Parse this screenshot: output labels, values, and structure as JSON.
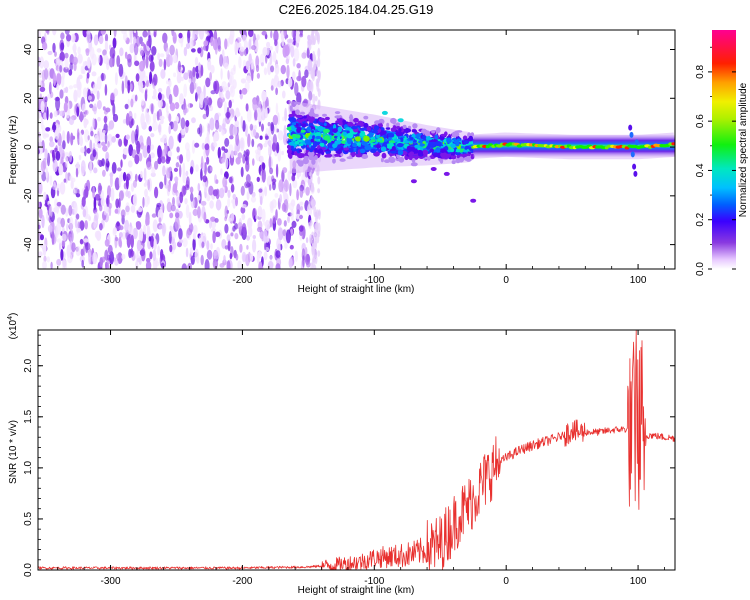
{
  "title": "C2E6.2025.184.04.25.G19",
  "colors": {
    "snr_line": "#e8302e",
    "low_noise": "#8a3ae0",
    "spectrum_ramp": [
      "#ffffff",
      "#f0d9ff",
      "#b77cf2",
      "#7a17e8",
      "#3a00ff",
      "#0070ff",
      "#00e8e8",
      "#14f000",
      "#f0f000",
      "#ff8c00",
      "#ff0000",
      "#ff00a0"
    ]
  },
  "chart_data": [
    {
      "type": "heatmap",
      "name": "spectrogram",
      "xlabel": "Height of straight line (km)",
      "ylabel": "Frequency (Hz)",
      "xlim": [
        -355,
        128
      ],
      "ylim": [
        -50,
        48
      ],
      "x_ticks": [
        -300,
        -200,
        -100,
        0,
        100
      ],
      "x_tick_labels": [
        "-300",
        "-200",
        "-100",
        "0",
        "100"
      ],
      "y_ticks": [
        40,
        20,
        0,
        -20,
        -40
      ],
      "y_tick_labels": [
        "40",
        "20",
        "0",
        "-20",
        "-40"
      ],
      "colorbar": {
        "label": "Normalized spectral amplitude",
        "range": [
          0,
          0.97
        ],
        "ticks": [
          0.0,
          0.2,
          0.4,
          0.6,
          0.8
        ],
        "tick_labels": [
          "0.0",
          "0.2",
          "0.4",
          "0.6",
          "0.8"
        ]
      },
      "regions": [
        {
          "x": [
            -355,
            -143
          ],
          "f": [
            -50,
            48
          ],
          "amplitude": [
            0.0,
            0.2
          ],
          "description": "scattered noise"
        },
        {
          "x": [
            -165,
            -25
          ],
          "f": [
            -12,
            15
          ],
          "amplitude": [
            0.1,
            0.6
          ],
          "description": "broadened tone"
        },
        {
          "x": [
            -25,
            128
          ],
          "f": [
            -3,
            4
          ],
          "amplitude": [
            0.4,
            0.9
          ],
          "description": "central tone"
        }
      ],
      "ridge": [
        {
          "x": -160,
          "f": 5
        },
        {
          "x": -100,
          "f": 3
        },
        {
          "x": -60,
          "f": 1
        },
        {
          "x": -30,
          "f": 0
        },
        {
          "x": 0,
          "f": 1
        },
        {
          "x": 50,
          "f": 0
        },
        {
          "x": 100,
          "f": 0
        },
        {
          "x": 128,
          "f": 1
        }
      ]
    },
    {
      "type": "line",
      "name": "snr",
      "xlabel": "Height of straight line (km)",
      "ylabel": "SNR (10 * v/v)",
      "y_multiplier_label": "(x10",
      "y_multiplier_exp": "4",
      "y_multiplier_close": ")",
      "xlim": [
        -355,
        128
      ],
      "ylim": [
        0,
        2.35
      ],
      "x_ticks": [
        -300,
        -200,
        -100,
        0,
        100
      ],
      "x_tick_labels": [
        "-300",
        "-200",
        "-100",
        "0",
        "100"
      ],
      "y_ticks": [
        0.0,
        0.5,
        1.0,
        1.5,
        2.0
      ],
      "y_tick_labels": [
        "0.0",
        "0.5",
        "1.0",
        "1.5",
        "2.0"
      ],
      "series": [
        {
          "x": [
            -355,
            -300,
            -250,
            -200,
            -150,
            -130,
            -110,
            -100,
            -90,
            -80,
            -70,
            -60,
            -50,
            -45,
            -40,
            -35,
            -30,
            -25,
            -20,
            -15,
            -10,
            -5,
            0,
            10,
            20,
            30,
            40,
            48,
            50,
            52,
            60,
            70,
            80,
            90,
            95,
            98,
            100,
            102,
            104,
            110,
            120,
            128
          ],
          "y": [
            0.02,
            0.02,
            0.02,
            0.02,
            0.03,
            0.05,
            0.08,
            0.12,
            0.13,
            0.14,
            0.16,
            0.2,
            0.25,
            0.35,
            0.45,
            0.55,
            0.6,
            0.7,
            0.8,
            0.9,
            1.0,
            1.05,
            1.1,
            1.17,
            1.22,
            1.26,
            1.3,
            1.35,
            1.4,
            1.35,
            1.35,
            1.35,
            1.37,
            1.38,
            1.35,
            1.6,
            1.8,
            1.3,
            1.32,
            1.32,
            1.3,
            1.29
          ]
        }
      ]
    }
  ]
}
